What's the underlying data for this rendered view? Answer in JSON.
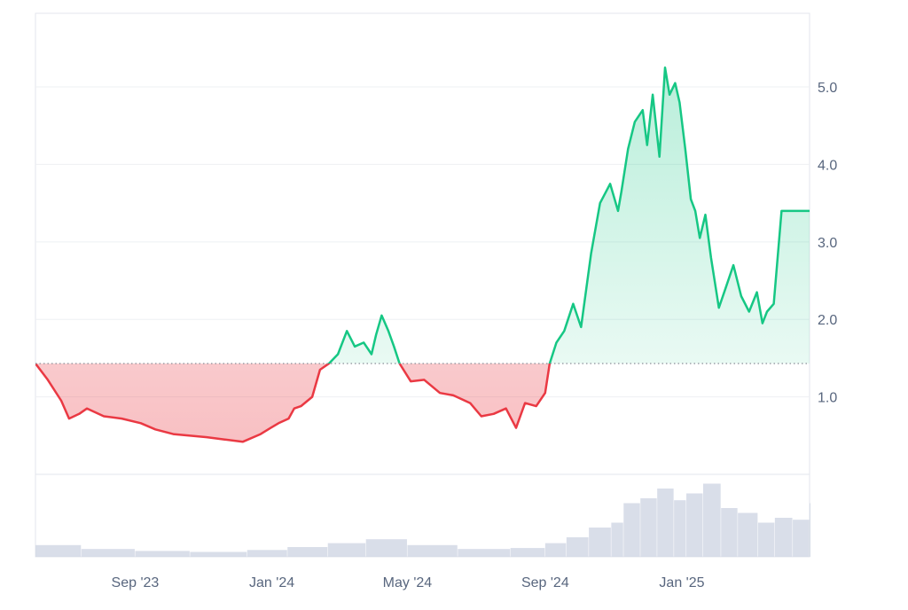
{
  "chart_data": {
    "type": "area",
    "title": "",
    "xlabel": "",
    "ylabel": "",
    "baseline": 1.43,
    "ylim": [
      0,
      5.95
    ],
    "y_ticks": [
      {
        "value": 1.0,
        "label": "1.0"
      },
      {
        "value": 2.0,
        "label": "2.0"
      },
      {
        "value": 3.0,
        "label": "3.0"
      },
      {
        "value": 4.0,
        "label": "4.0"
      },
      {
        "value": 5.0,
        "label": "5.0"
      }
    ],
    "x_range": [
      "2023-06-04",
      "2025-04-25"
    ],
    "x_ticks": [
      {
        "date": "2023-09-01",
        "label": "Sep '23"
      },
      {
        "date": "2024-01-01",
        "label": "Jan '24"
      },
      {
        "date": "2024-05-01",
        "label": "May '24"
      },
      {
        "date": "2024-09-01",
        "label": "Sep '24"
      },
      {
        "date": "2025-01-01",
        "label": "Jan '25"
      }
    ],
    "price_series": {
      "x": [
        "2023-06-04",
        "2023-06-15",
        "2023-06-27",
        "2023-07-04",
        "2023-07-13",
        "2023-07-20",
        "2023-08-04",
        "2023-08-20",
        "2023-09-06",
        "2023-09-19",
        "2023-10-05",
        "2023-10-19",
        "2023-11-04",
        "2023-11-20",
        "2023-12-06",
        "2023-12-22",
        "2023-12-31",
        "2024-01-07",
        "2024-01-16",
        "2024-01-21",
        "2024-01-27",
        "2024-02-06",
        "2024-02-13",
        "2024-02-21",
        "2024-02-29",
        "2024-03-08",
        "2024-03-15",
        "2024-03-23",
        "2024-03-30",
        "2024-04-03",
        "2024-04-08",
        "2024-04-14",
        "2024-04-19",
        "2024-04-24",
        "2024-05-04",
        "2024-05-16",
        "2024-05-30",
        "2024-06-11",
        "2024-06-26",
        "2024-07-06",
        "2024-07-17",
        "2024-07-28",
        "2024-08-06",
        "2024-08-14",
        "2024-08-24",
        "2024-09-01",
        "2024-09-05",
        "2024-09-11",
        "2024-09-18",
        "2024-09-26",
        "2024-10-03",
        "2024-10-12",
        "2024-10-20",
        "2024-10-29",
        "2024-11-05",
        "2024-11-08",
        "2024-11-14",
        "2024-11-20",
        "2024-11-27",
        "2024-12-01",
        "2024-12-06",
        "2024-12-12",
        "2024-12-17",
        "2024-12-21",
        "2024-12-26",
        "2024-12-30",
        "2025-01-04",
        "2025-01-09",
        "2025-01-13",
        "2025-01-17",
        "2025-01-22",
        "2025-01-27",
        "2025-02-03",
        "2025-02-09",
        "2025-02-16",
        "2025-02-23",
        "2025-03-02",
        "2025-03-09",
        "2025-03-14",
        "2025-03-18",
        "2025-03-24",
        "2025-03-31",
        "2025-04-05",
        "2025-04-10",
        "2025-04-16",
        "2025-04-20",
        "2025-04-25"
      ],
      "y": [
        1.43,
        1.22,
        0.95,
        0.72,
        0.78,
        0.85,
        0.75,
        0.72,
        0.66,
        0.58,
        0.52,
        0.5,
        0.48,
        0.45,
        0.42,
        0.52,
        0.6,
        0.66,
        0.72,
        0.85,
        0.88,
        1.0,
        1.35,
        1.43,
        1.55,
        1.85,
        1.65,
        1.7,
        1.55,
        1.8,
        2.05,
        1.85,
        1.65,
        1.43,
        1.2,
        1.22,
        1.05,
        1.02,
        0.92,
        0.75,
        0.78,
        0.85,
        0.6,
        0.92,
        0.88,
        1.05,
        1.43,
        1.7,
        1.85,
        2.2,
        1.9,
        2.85,
        3.5,
        3.75,
        3.4,
        3.65,
        4.2,
        4.55,
        4.7,
        4.25,
        4.9,
        4.1,
        5.25,
        4.9,
        5.05,
        4.8,
        4.2,
        3.55,
        3.4,
        3.05,
        3.35,
        2.8,
        2.15,
        2.4,
        2.7,
        2.3,
        2.1,
        2.35,
        1.95,
        2.1,
        2.2,
        3.4,
        3.4,
        3.4,
        3.4,
        3.4,
        3.4
      ]
    },
    "volume_series": {
      "x": [
        "2023-06-04",
        "2023-07-15",
        "2023-09-01",
        "2023-10-20",
        "2023-12-10",
        "2024-01-15",
        "2024-02-20",
        "2024-03-25",
        "2024-05-01",
        "2024-06-15",
        "2024-08-01",
        "2024-09-01",
        "2024-09-20",
        "2024-10-10",
        "2024-10-30",
        "2024-11-10",
        "2024-11-25",
        "2024-12-10",
        "2024-12-25",
        "2025-01-05",
        "2025-01-20",
        "2025-02-05",
        "2025-02-20",
        "2025-03-10",
        "2025-03-25",
        "2025-04-10",
        "2025-04-25"
      ],
      "y": [
        12,
        8,
        6,
        5,
        7,
        10,
        14,
        18,
        12,
        8,
        9,
        14,
        20,
        30,
        35,
        55,
        60,
        70,
        58,
        65,
        75,
        50,
        45,
        35,
        40,
        38,
        55
      ],
      "y_max": 80
    },
    "colors": {
      "up_line": "#16c784",
      "down_line": "#ea3943",
      "up_fill": "#16c784",
      "down_fill": "#ea3943",
      "volume": "#cfd6e4",
      "grid": "#eef0f3",
      "axis_text": "#58667e",
      "baseline": "#8a8f99"
    }
  }
}
